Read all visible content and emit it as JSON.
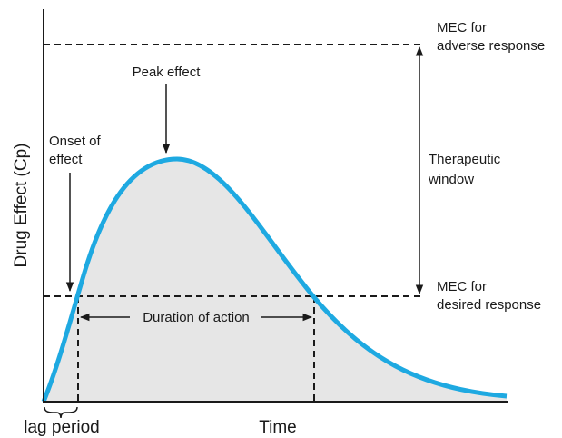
{
  "axes": {
    "y_label": "Drug Effect (Cp)",
    "x_label": "Time",
    "lag": "lag period"
  },
  "labels": {
    "mec_adverse": [
      "MEC for",
      "adverse response"
    ],
    "peak": "Peak effect",
    "onset": [
      "Onset of",
      "effect"
    ],
    "window": [
      "Therapeutic",
      "window"
    ],
    "mec_desired": [
      "MEC for",
      "desired response"
    ],
    "duration": "Duration of action"
  }
}
